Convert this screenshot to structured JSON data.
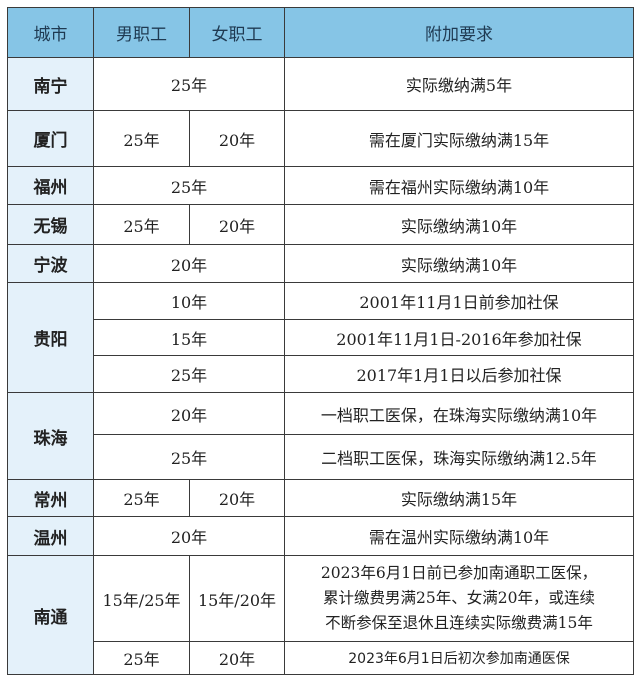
{
  "header": {
    "city": "城市",
    "male": "男职工",
    "female": "女职工",
    "extra": "附加要求"
  },
  "rows": {
    "nanning": {
      "city": "南宁",
      "years": "25年",
      "extra": "实际缴纳满5年"
    },
    "xiamen": {
      "city": "厦门",
      "male": "25年",
      "female": "20年",
      "extra": "需在厦门实际缴纳满15年"
    },
    "fuzhou": {
      "city": "福州",
      "years": "25年",
      "extra": "需在福州实际缴纳满10年"
    },
    "wuxi": {
      "city": "无锡",
      "male": "25年",
      "female": "20年",
      "extra": "实际缴纳满10年"
    },
    "ningbo": {
      "city": "宁波",
      "years": "20年",
      "extra": "实际缴纳满10年"
    },
    "guiyang": {
      "city": "贵阳",
      "sub": [
        {
          "years": "10年",
          "extra": "2001年11月1日前参加社保"
        },
        {
          "years": "15年",
          "extra": "2001年11月1日-2016年参加社保"
        },
        {
          "years": "25年",
          "extra": "2017年1月1日以后参加社保"
        }
      ]
    },
    "zhuhai": {
      "city": "珠海",
      "sub": [
        {
          "years": "20年",
          "extra": "一档职工医保，在珠海实际缴纳满10年"
        },
        {
          "years": "25年",
          "extra": "二档职工医保，珠海实际缴纳满12.5年"
        }
      ]
    },
    "changzhou": {
      "city": "常州",
      "male": "25年",
      "female": "20年",
      "extra": "实际缴纳满15年"
    },
    "wenzhou": {
      "city": "温州",
      "years": "20年",
      "extra": "需在温州实际缴纳满10年"
    },
    "nantong": {
      "city": "南通",
      "sub": [
        {
          "male": "15年/25年",
          "female": "15年/20年",
          "extra_lines": [
            "2023年6月1日前已参加南通职工医保，",
            "累计缴费男满25年、女满20年，或连续",
            "不断参保至退休且连续实际缴费满15年"
          ]
        },
        {
          "male": "25年",
          "female": "20年",
          "extra": "2023年6月1日后初次参加南通医保"
        }
      ]
    }
  },
  "colors": {
    "header_bg": "#86c5e6",
    "city_bg": "#e4f1fa",
    "border": "#3a3a3a"
  }
}
